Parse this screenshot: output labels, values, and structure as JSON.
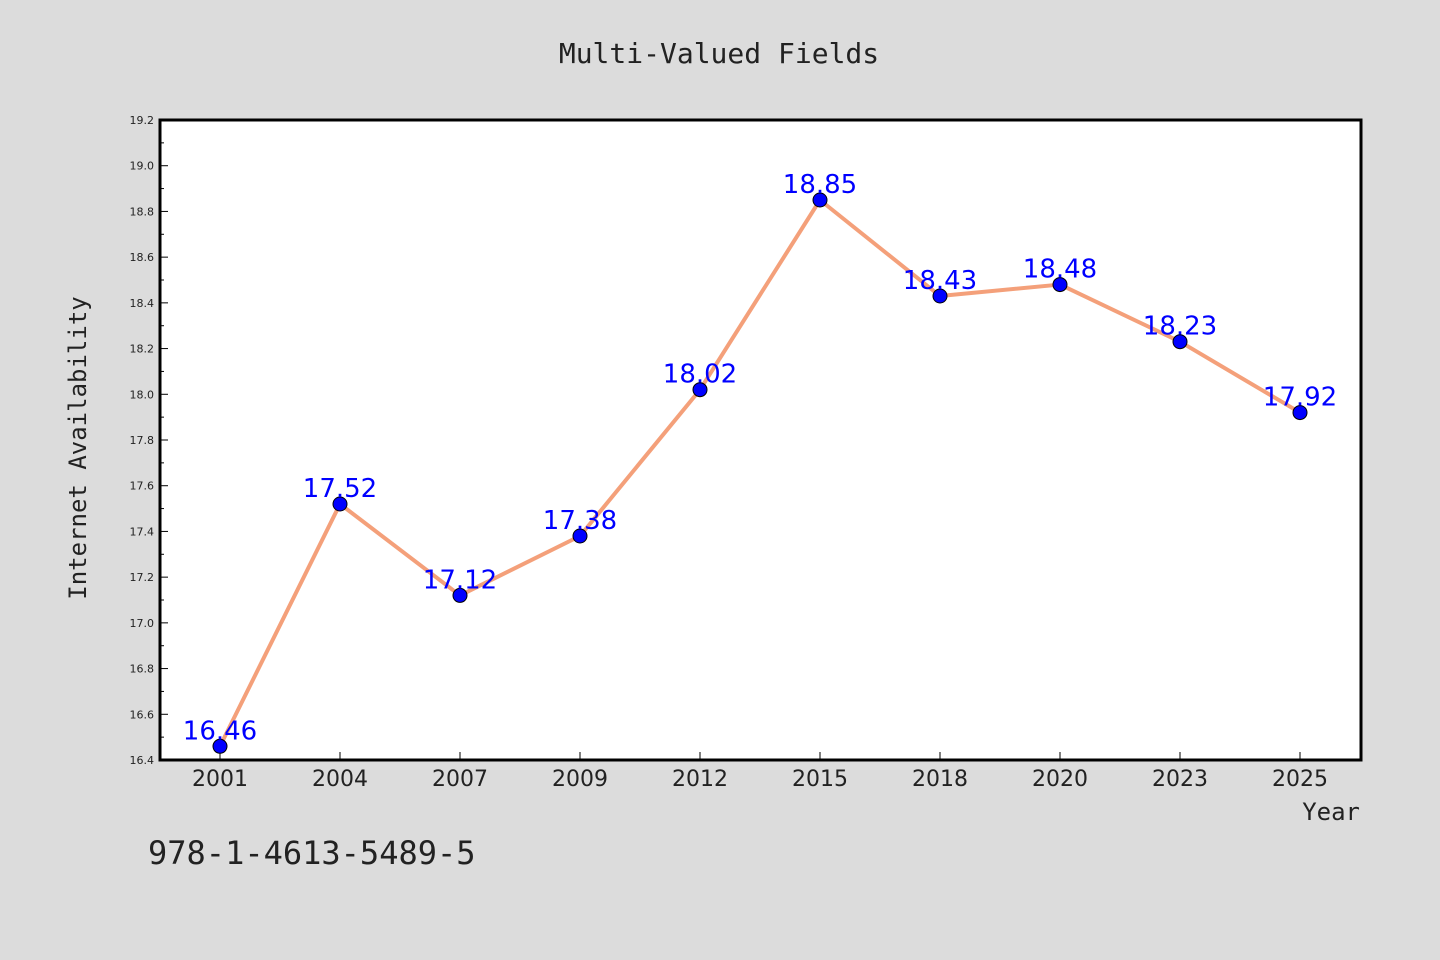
{
  "chart_data": {
    "type": "line",
    "title": "Multi-Valued Fields",
    "xlabel": "Year",
    "ylabel": "Internet Availability",
    "categories": [
      "2001",
      "2004",
      "2007",
      "2009",
      "2012",
      "2015",
      "2018",
      "2020",
      "2023",
      "2025"
    ],
    "series": [
      {
        "values": [
          16.46,
          17.52,
          17.12,
          17.38,
          18.02,
          18.85,
          18.43,
          18.48,
          18.23,
          17.92
        ]
      }
    ],
    "data_labels": [
      "16.46",
      "17.52",
      "17.12",
      "17.38",
      "18.02",
      "18.85",
      "18.43",
      "18.48",
      "18.23",
      "17.92"
    ],
    "ylim": [
      16.4,
      19.2
    ],
    "yticks": [
      "16.4",
      "16.6",
      "16.8",
      "17.0",
      "17.2",
      "17.4",
      "17.6",
      "17.8",
      "18.0",
      "18.2",
      "18.4",
      "18.6",
      "18.8",
      "19.0",
      "19.2"
    ],
    "grid": false,
    "legend": "none",
    "colors": {
      "background": "#dcdcdc",
      "plot_background": "#ffffff",
      "line": "#f4a07a",
      "marker": "#0000ff",
      "data_label": "#0000ff"
    }
  },
  "footer": {
    "isbn": "978-1-4613-5489-5"
  }
}
